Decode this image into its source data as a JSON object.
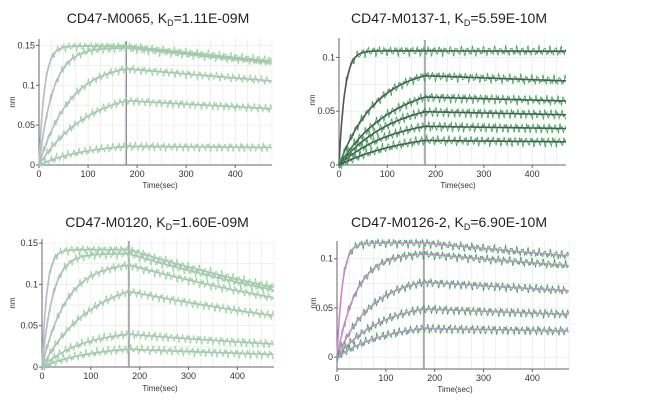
{
  "colors": {
    "fit": "#b9b9c9",
    "fit_dark": "#555555",
    "fit_magenta": "#cc88cc",
    "data_light": "#88dd88",
    "data_mid": "#33aa55",
    "data_dark": "#117733",
    "grid": "#e6e6e6",
    "axis": "#666666",
    "marker": "#8c8ca0"
  },
  "chart_data": [
    {
      "type": "line",
      "title_main": "CD47-M0065, K",
      "title_sub": "D",
      "title_value": "=1.11E-09M",
      "xlabel": "Time(sec)",
      "ylabel": "nm",
      "xlim": [
        0,
        475
      ],
      "ylim": [
        0,
        0.158
      ],
      "xticks": [
        0,
        100,
        200,
        300,
        400
      ],
      "yticks": [
        0,
        0.05,
        0.1,
        0.15
      ],
      "ytick_labels": [
        "0",
        "0.05",
        "0.1",
        "0.15"
      ],
      "assoc_end_sec": 178,
      "fit_color": "fit",
      "data_color": "data_light",
      "series": [
        {
          "plateau": 0.149,
          "kobs": 0.09,
          "kd": 0.00045
        },
        {
          "plateau": 0.147,
          "kobs": 0.035,
          "kd": 0.00045
        },
        {
          "plateau": 0.128,
          "kobs": 0.016,
          "kd": 0.00045
        },
        {
          "plateau": 0.097,
          "kobs": 0.01,
          "kd": 0.00045
        },
        {
          "plateau": 0.028,
          "kobs": 0.01,
          "kd": 0.0002
        }
      ]
    },
    {
      "type": "line",
      "title_main": "CD47-M0137-1, K",
      "title_sub": "D",
      "title_value": "=5.59E-10M",
      "xlabel": "Time(sec)",
      "ylabel": "nm",
      "xlim": [
        0,
        470
      ],
      "ylim": [
        0,
        0.118
      ],
      "xticks": [
        0,
        100,
        200,
        300,
        400
      ],
      "yticks": [
        0,
        0.05,
        0.1
      ],
      "ytick_labels": [
        "0",
        "0.05",
        "0.1"
      ],
      "assoc_end_sec": 178,
      "fit_color": "fit_dark",
      "data_color": "data_mid",
      "series": [
        {
          "plateau": 0.106,
          "kobs": 0.085,
          "kd": 1e-05
        },
        {
          "plateau": 0.092,
          "kobs": 0.013,
          "kd": 0.0002
        },
        {
          "plateau": 0.079,
          "kobs": 0.009,
          "kd": 0.0002
        },
        {
          "plateau": 0.062,
          "kobs": 0.009,
          "kd": 0.0002
        },
        {
          "plateau": 0.045,
          "kobs": 0.009,
          "kd": 0.0002
        },
        {
          "plateau": 0.032,
          "kobs": 0.007,
          "kd": 0.0002
        }
      ]
    },
    {
      "type": "line",
      "title_main": "CD47-M0120, K",
      "title_sub": "D",
      "title_value": "=1.60E-09M",
      "xlabel": "Time(sec)",
      "ylabel": "nm",
      "xlim": [
        0,
        475
      ],
      "ylim": [
        0,
        0.155
      ],
      "xticks": [
        0,
        100,
        200,
        300,
        400
      ],
      "yticks": [
        0,
        0.05,
        0.1,
        0.15
      ],
      "ytick_labels": [
        "0",
        "0.05",
        "0.1",
        "0.15"
      ],
      "assoc_end_sec": 178,
      "fit_color": "fit",
      "data_color": "data_light",
      "series": [
        {
          "plateau": 0.142,
          "kobs": 0.1,
          "kd": 0.0013
        },
        {
          "plateau": 0.137,
          "kobs": 0.045,
          "kd": 0.0013
        },
        {
          "plateau": 0.127,
          "kobs": 0.02,
          "kd": 0.0013
        },
        {
          "plateau": 0.11,
          "kobs": 0.01,
          "kd": 0.0013
        },
        {
          "plateau": 0.045,
          "kobs": 0.012,
          "kd": 0.0012
        },
        {
          "plateau": 0.026,
          "kobs": 0.01,
          "kd": 0.0012
        }
      ]
    },
    {
      "type": "line",
      "title_main": "CD47-M0126-2, K",
      "title_sub": "D",
      "title_value": "=6.90E-10M",
      "xlabel": "Time(sec)",
      "ylabel": "nm",
      "xlim": [
        0,
        475
      ],
      "ylim": [
        -0.012,
        0.118
      ],
      "xticks": [
        0,
        100,
        200,
        300,
        400
      ],
      "yticks": [
        0,
        0.05,
        0.1
      ],
      "ytick_labels": [
        "0",
        "0.05",
        "0.1"
      ],
      "assoc_end_sec": 178,
      "fit_color": "fit_magenta",
      "data_color": "data_mid",
      "series": [
        {
          "plateau": 0.116,
          "kobs": 0.09,
          "kd": 0.0004
        },
        {
          "plateau": 0.106,
          "kobs": 0.025,
          "kd": 0.0004
        },
        {
          "plateau": 0.083,
          "kobs": 0.014,
          "kd": 0.0004
        },
        {
          "plateau": 0.057,
          "kobs": 0.011,
          "kd": 0.0004
        },
        {
          "plateau": 0.035,
          "kobs": 0.01,
          "kd": 0.0003
        }
      ]
    }
  ]
}
